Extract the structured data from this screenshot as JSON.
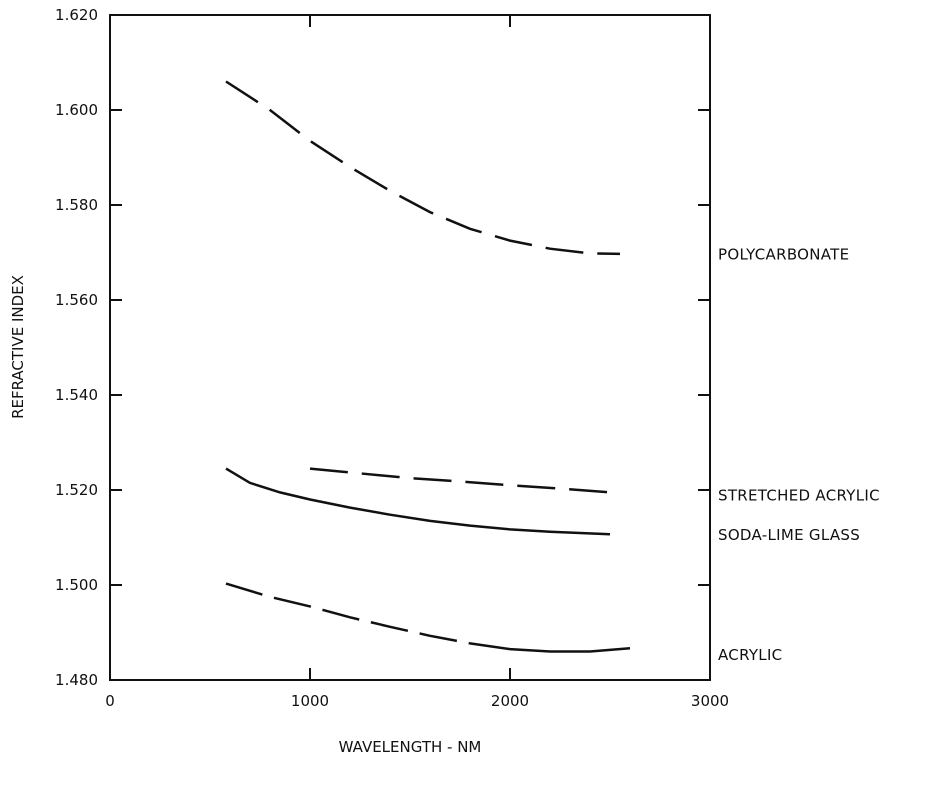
{
  "chart_data": {
    "type": "line",
    "xlabel": "WAVELENGTH - NM",
    "ylabel": "REFRACTIVE INDEX",
    "xlim": [
      0,
      3000
    ],
    "ylim": [
      1.48,
      1.62
    ],
    "x_ticks": [
      "0",
      "1000",
      "2000",
      "3000"
    ],
    "y_ticks": [
      "1.480",
      "1.500",
      "1.520",
      "1.540",
      "1.560",
      "1.580",
      "1.600",
      "1.620"
    ],
    "grid": false,
    "series": [
      {
        "name": "POLYCARBONATE",
        "style": "dashed",
        "x": [
          580,
          800,
          1000,
          1200,
          1400,
          1600,
          1800,
          2000,
          2200,
          2400,
          2550
        ],
        "y": [
          1.606,
          1.6,
          1.5935,
          1.588,
          1.583,
          1.5785,
          1.575,
          1.5725,
          1.5708,
          1.5698,
          1.5697
        ]
      },
      {
        "name": "STRETCHED ACRYLIC",
        "style": "dashed",
        "x": [
          1000,
          1250,
          1500,
          1750,
          2000,
          2250,
          2500
        ],
        "y": [
          1.5245,
          1.5235,
          1.5225,
          1.5218,
          1.521,
          1.5203,
          1.5195
        ]
      },
      {
        "name": "SODA-LIME GLASS",
        "style": "solid",
        "x": [
          580,
          700,
          850,
          1000,
          1200,
          1400,
          1600,
          1800,
          2000,
          2200,
          2500
        ],
        "y": [
          1.5245,
          1.5215,
          1.5195,
          1.518,
          1.5163,
          1.5148,
          1.5135,
          1.5125,
          1.5117,
          1.5112,
          1.5107
        ]
      },
      {
        "name": "ACRYLIC",
        "style": "dash-to-solid",
        "x": [
          580,
          800,
          1000,
          1200,
          1400,
          1600,
          1800,
          2000,
          2200,
          2400,
          2600
        ],
        "y": [
          1.5003,
          1.4975,
          1.4955,
          1.4932,
          1.4912,
          1.4893,
          1.4877,
          1.4865,
          1.486,
          1.486,
          1.4867
        ]
      }
    ]
  }
}
